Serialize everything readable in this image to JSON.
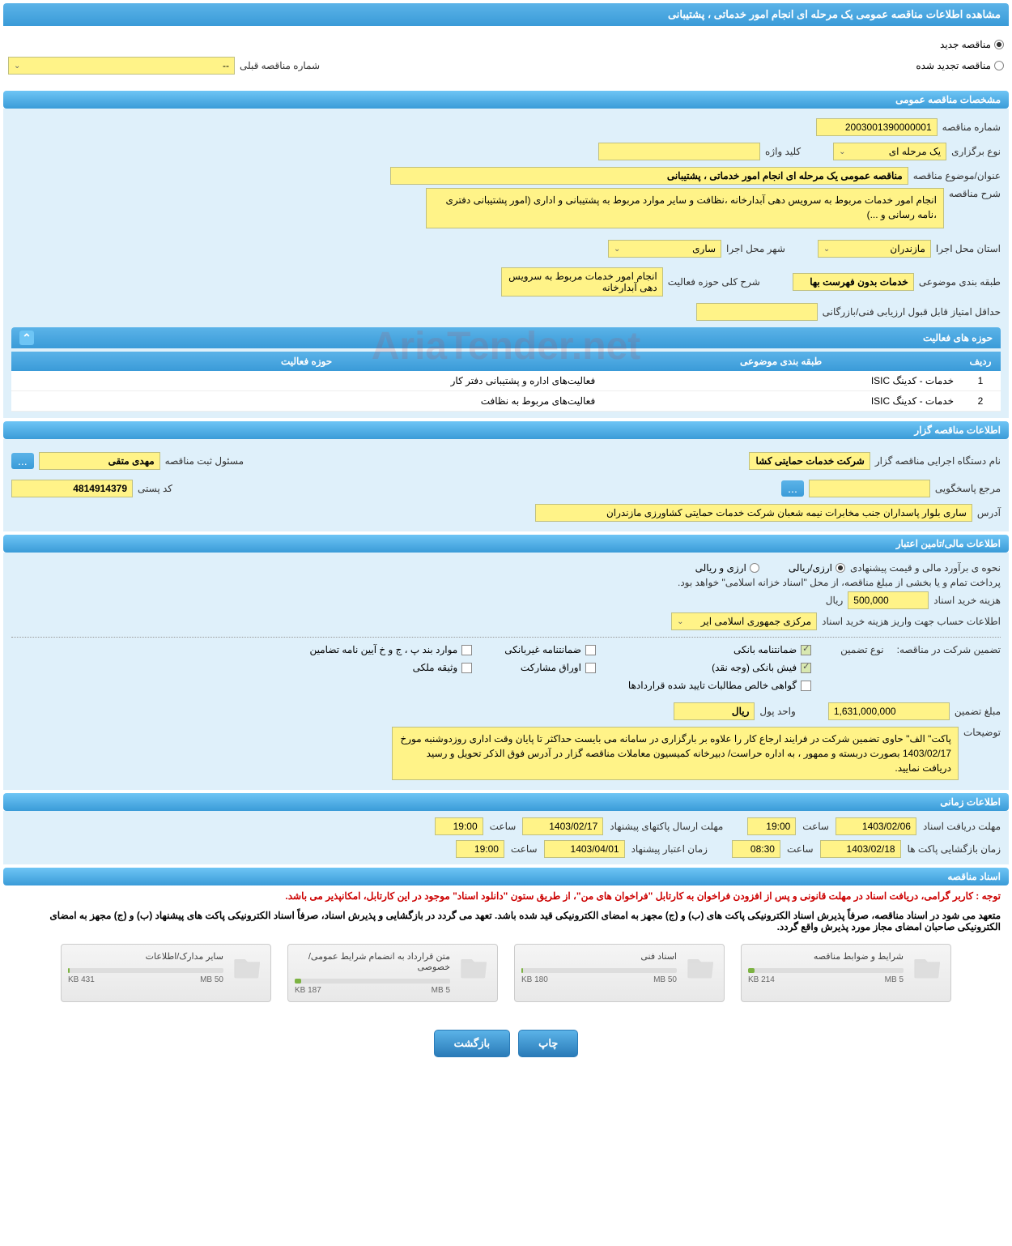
{
  "page_title": "مشاهده اطلاعات مناقصه عمومی یک مرحله ای انجام امور خدماتی ، پشتیبانی",
  "tender_type": {
    "new_label": "مناقصه جدید",
    "renew_label": "مناقصه تجدید شده",
    "prev_number_label": "شماره مناقصه قبلی",
    "prev_number_value": "--"
  },
  "sections": {
    "general": {
      "title": "مشخصات مناقصه عمومی",
      "number_label": "شماره مناقصه",
      "number_value": "2003001390000001",
      "holding_type_label": "نوع برگزاری",
      "holding_type_value": "یک مرحله ای",
      "keyword_label": "کلید واژه",
      "keyword_value": "",
      "subject_label": "عنوان/موضوع مناقصه",
      "subject_value": "مناقصه عمومی یک مرحله ای انجام امور خدماتی ، پشتیبانی",
      "desc_label": "شرح مناقصه",
      "desc_value": "انجام امور خدمات مربوط به سرویس دهی آبدارخانه ،نظافت و سایر موارد مربوط به پشتیبانی و اداری (امور پشتیبانی دفتری ،نامه رسانی و ...)",
      "province_label": "استان محل اجرا",
      "province_value": "مازندران",
      "city_label": "شهر محل اجرا",
      "city_value": "ساری",
      "category_label": "طبقه بندی موضوعی",
      "category_value": "خدمات بدون فهرست بها",
      "activity_scope_label": "شرح کلی حوزه فعالیت",
      "activity_scope_value": "انجام امور خدمات مربوط به سرویس دهی آبدارخانه",
      "min_score_label": "حداقل امتیاز قابل قبول ارزیابی فنی/بازرگانی",
      "min_score_value": ""
    },
    "activities": {
      "title": "حوزه های فعالیت",
      "col_row": "ردیف",
      "col_category": "طبقه بندی موضوعی",
      "col_activity": "حوزه فعالیت",
      "rows": [
        {
          "n": "1",
          "cat": "خدمات - کدینگ ISIC",
          "act": "فعالیت‌های اداره و پشتیبانی دفتر کار"
        },
        {
          "n": "2",
          "cat": "خدمات - کدینگ ISIC",
          "act": "فعالیت‌های مربوط به نظافت"
        }
      ]
    },
    "client": {
      "title": "اطلاعات مناقصه گزار",
      "agency_label": "نام دستگاه اجرایی مناقصه گزار",
      "agency_value": "شرکت خدمات حمایتی کشا",
      "responsible_label": "مسئول ثبت مناقصه",
      "responsible_value": "مهدی متقی",
      "contact_label": "مرجع پاسخگویی",
      "contact_value": "",
      "postal_label": "کد پستی",
      "postal_value": "4814914379",
      "address_label": "آدرس",
      "address_value": "ساری بلوار پاسداران جنب مخابرات نیمه شعبان شرکت خدمات حمایتی کشاورزی مازندران"
    },
    "finance": {
      "title": "اطلاعات مالی/تامین اعتبار",
      "estimate_label": "نحوه ی برآورد مالی و قیمت پیشنهادی",
      "currency_rial": "ارزی/ریالی",
      "currency_both": "ارزی و ریالی",
      "payment_note": "پرداخت تمام و یا بخشی از مبلغ مناقصه، از محل \"اسناد خزانه اسلامی\" خواهد بود.",
      "doc_cost_label": "هزینه خرید اسناد",
      "doc_cost_value": "500,000",
      "doc_cost_unit": "ریال",
      "account_label": "اطلاعات حساب جهت واریز هزینه خرید اسناد",
      "account_value": "مرکزی جمهوری اسلامی ایر",
      "guarantee_label": "تضمین شرکت در مناقصه:",
      "guarantee_type_label": "نوع تضمین",
      "guarantee_types": {
        "bank_guarantee": "ضمانتنامه بانکی",
        "nonbank_guarantee": "ضمانتنامه غیربانکی",
        "bylaw_items": "موارد بند پ ، ج و خ آیین نامه تضامین",
        "bank_receipt": "فیش بانکی (وجه نقد)",
        "bonds": "اوراق مشارکت",
        "property_deed": "وثیقه ملکی",
        "net_receivables": "گواهی خالص مطالبات تایید شده قراردادها"
      },
      "guarantee_amount_label": "مبلغ تضمین",
      "guarantee_amount_value": "1,631,000,000",
      "currency_unit_label": "واحد پول",
      "currency_unit_value": "ریال",
      "notes_label": "توضیحات",
      "notes_value": "پاکت\" الف\" حاوی تضمین شرکت در فرایند ارجاع کار را علاوه بر بارگزاری در سامانه می بایست حداکثر تا پایان وقت اداری روزدوشنبه مورخ 1403/02/17 بصورت دربسته و ممهور ، به اداره حراست/  دبیرخانه کمیسیون معاملات مناقصه گزار در آدرس فوق الذکر تحویل و رسید  دریافت  نمایید."
    },
    "timeline": {
      "title": "اطلاعات زمانی",
      "receive_label": "مهلت دریافت اسناد",
      "receive_date": "1403/02/06",
      "receive_time": "19:00",
      "send_label": "مهلت ارسال پاکتهای پیشنهاد",
      "send_date": "1403/02/17",
      "send_time": "19:00",
      "open_label": "زمان بازگشایی پاکت ها",
      "open_date": "1403/02/18",
      "open_time": "08:30",
      "validity_label": "زمان اعتبار پیشنهاد",
      "validity_date": "1403/04/01",
      "validity_time": "19:00",
      "time_label": "ساعت"
    },
    "docs": {
      "title": "اسناد مناقصه",
      "notice1": "توجه : کاربر گرامی، دریافت اسناد در مهلت قانونی و پس از افزودن فراخوان به کارتابل \"فراخوان های من\"، از طریق ستون \"دانلود اسناد\" موجود در این کارتابل، امکانپذیر می باشد.",
      "notice2": "متعهد می شود در اسناد مناقصه، صرفاً پذیرش اسناد الکترونیکی پاکت های (ب) و (ج) مجهز به امضای الکترونیکی قید شده باشد. تعهد می گردد در بازگشایی و پذیرش اسناد، صرفاً اسناد الکترونیکی پاکت های پیشنهاد (ب) و (ج) مجهز به امضای الکترونیکی صاحبان امضای مجاز مورد پذیرش واقع گردد.",
      "files": [
        {
          "title": "شرایط و ضوابط مناقصه",
          "size": "214 KB",
          "max": "5 MB",
          "pct": 4
        },
        {
          "title": "اسناد فنی",
          "size": "180 KB",
          "max": "50 MB",
          "pct": 1
        },
        {
          "title": "متن قرارداد به انضمام شرایط عمومی/خصوصی",
          "size": "187 KB",
          "max": "5 MB",
          "pct": 4
        },
        {
          "title": "سایر مدارک/اطلاعات",
          "size": "431 KB",
          "max": "50 MB",
          "pct": 1
        }
      ]
    }
  },
  "buttons": {
    "print": "چاپ",
    "back": "بازگشت",
    "ellipsis": "..."
  },
  "colors": {
    "header_bg": "#3a9bd8",
    "field_bg": "#fff388",
    "section_bg": "#dff0fa"
  }
}
